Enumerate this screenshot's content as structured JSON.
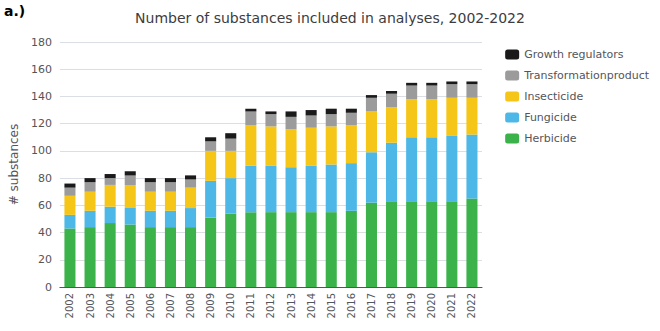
{
  "chart_data": {
    "type": "bar",
    "title": "Number of substances included in analyses, 2002-2022",
    "ylabel": "# substances",
    "annotations": [
      "a.)"
    ],
    "categories": [
      "2002",
      "2003",
      "2004",
      "2005",
      "2006",
      "2007",
      "2008",
      "2009",
      "2010",
      "2011",
      "2012",
      "2013",
      "2014",
      "2015",
      "2016",
      "2017",
      "2018",
      "2019",
      "2020",
      "2021",
      "2022"
    ],
    "series": [
      {
        "name": "Herbicide",
        "color": "#3cb34a",
        "values": [
          43,
          44,
          47,
          46,
          44,
          44,
          44,
          51,
          54,
          55,
          55,
          55,
          55,
          55,
          56,
          62,
          63,
          63,
          63,
          63,
          65
        ]
      },
      {
        "name": "Fungicide",
        "color": "#4db8e8",
        "values": [
          10,
          12,
          12,
          12,
          12,
          12,
          14,
          27,
          26,
          34,
          34,
          33,
          34,
          35,
          35,
          37,
          43,
          47,
          47,
          48,
          47
        ]
      },
      {
        "name": "Insecticide",
        "color": "#f5c518",
        "values": [
          14,
          14,
          16,
          17,
          14,
          14,
          15,
          22,
          20,
          30,
          29,
          28,
          28,
          28,
          28,
          30,
          26,
          28,
          28,
          28,
          27
        ]
      },
      {
        "name": "Transformationproduct",
        "color": "#9b9b9b",
        "values": [
          6,
          7,
          5,
          7,
          7,
          7,
          6,
          7,
          9,
          10,
          9,
          9,
          9,
          9,
          9,
          10,
          10,
          10,
          10,
          10,
          10
        ]
      },
      {
        "name": "Growth regulators",
        "color": "#1a1a1a",
        "values": [
          3,
          3,
          3,
          3,
          3,
          3,
          3,
          3,
          4,
          2,
          2,
          4,
          4,
          4,
          3,
          2,
          2,
          2,
          2,
          2,
          2
        ]
      }
    ],
    "stacked": true,
    "ylim": [
      0,
      180
    ],
    "yticks": [
      0,
      20,
      40,
      60,
      80,
      100,
      120,
      140,
      160,
      180
    ],
    "grid": true,
    "legend": "right"
  }
}
